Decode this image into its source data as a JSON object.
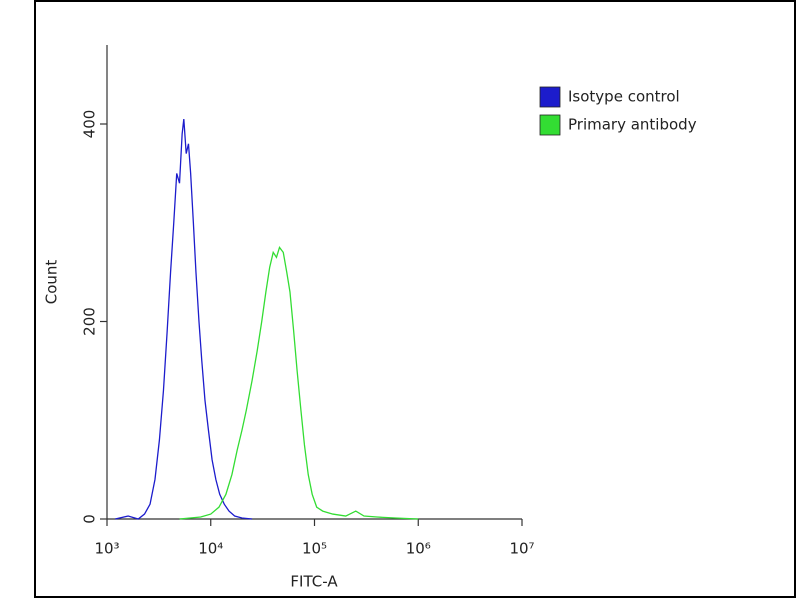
{
  "chart_data": {
    "type": "line",
    "x_label": "FITC-A",
    "y_label": "Count",
    "xscale": "log",
    "xlim": [
      1000,
      10000000
    ],
    "xticks": [
      {
        "value": 1000,
        "label": "10³"
      },
      {
        "value": 10000,
        "label": "10⁴"
      },
      {
        "value": 100000,
        "label": "10⁵"
      },
      {
        "value": 1000000,
        "label": "10⁶"
      },
      {
        "value": 10000000,
        "label": "10⁷"
      }
    ],
    "ylim": [
      0,
      480
    ],
    "yticks": [
      0,
      200,
      400
    ],
    "legend": "top-right",
    "series": [
      {
        "name": "Isotype control",
        "color": "#1c1ccc",
        "x": [
          1200,
          1600,
          2000,
          2300,
          2600,
          2900,
          3200,
          3500,
          3800,
          4100,
          4400,
          4700,
          5000,
          5300,
          5500,
          5800,
          6100,
          6400,
          6800,
          7200,
          7700,
          8200,
          8800,
          9500,
          10300,
          11200,
          12200,
          13500,
          15000,
          17000,
          20000,
          25000
        ],
        "values": [
          0,
          3,
          0,
          5,
          15,
          40,
          80,
          130,
          190,
          250,
          300,
          350,
          340,
          390,
          405,
          370,
          380,
          350,
          300,
          250,
          200,
          160,
          120,
          90,
          60,
          40,
          25,
          15,
          8,
          3,
          1,
          0
        ]
      },
      {
        "name": "Primary antibody",
        "color": "#33dd33",
        "x": [
          5000,
          8000,
          10000,
          12000,
          14000,
          16000,
          18000,
          20000,
          22000,
          25000,
          28000,
          31000,
          34000,
          37000,
          40000,
          43000,
          46000,
          50000,
          54000,
          58000,
          63000,
          68000,
          74000,
          80000,
          87000,
          95000,
          105000,
          120000,
          150000,
          200000,
          250000,
          300000,
          400000,
          600000,
          1000000
        ],
        "values": [
          0,
          2,
          5,
          12,
          25,
          45,
          70,
          90,
          110,
          140,
          170,
          200,
          230,
          255,
          270,
          265,
          275,
          270,
          250,
          230,
          190,
          150,
          110,
          75,
          45,
          25,
          12,
          8,
          5,
          3,
          8,
          3,
          2,
          1,
          0
        ]
      }
    ]
  }
}
